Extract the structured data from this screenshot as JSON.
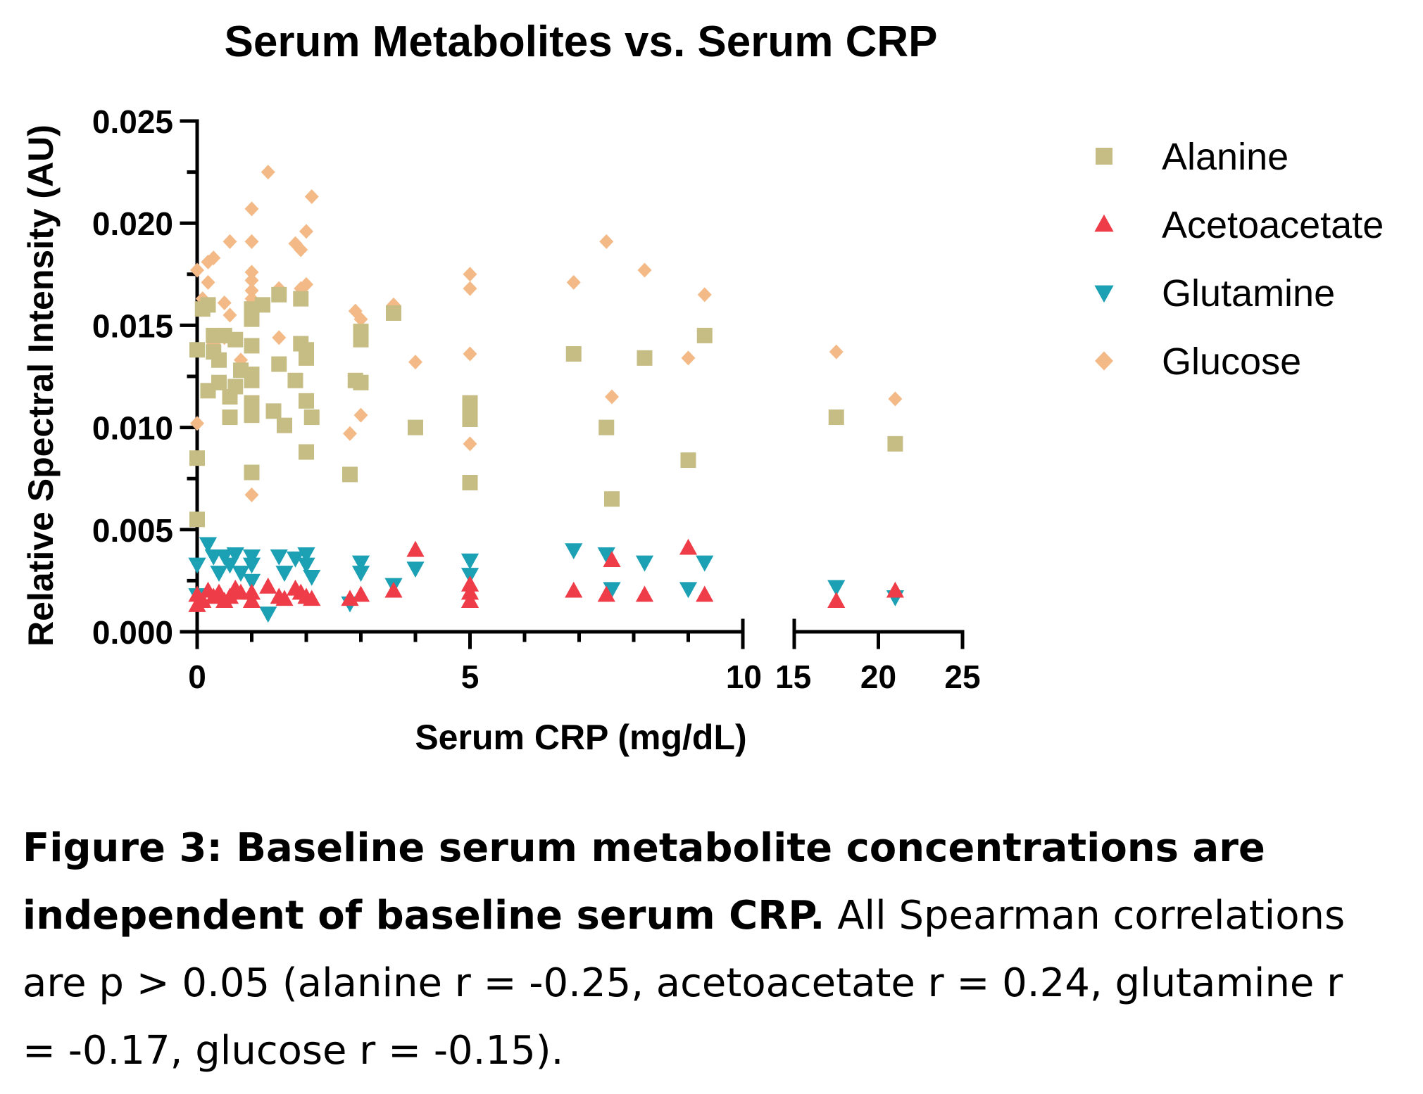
{
  "chart_data": {
    "type": "scatter",
    "title": "Serum Metabolites vs. Serum CRP",
    "xlabel": "Serum CRP (mg/dL)",
    "ylabel": "Relative Spectral Intensity (AU)",
    "xlim": [
      0,
      25
    ],
    "x_axis_break": [
      10,
      15
    ],
    "ylim": [
      0,
      0.025
    ],
    "x_ticks": [
      0,
      5,
      10,
      15,
      20,
      25
    ],
    "x_tick_labels": [
      "0",
      "5",
      "10",
      "15",
      "20",
      "25"
    ],
    "y_ticks": [
      0,
      0.005,
      0.01,
      0.015,
      0.02,
      0.025
    ],
    "y_tick_labels": [
      "0.000",
      "0.005",
      "0.010",
      "0.015",
      "0.020",
      "0.025"
    ],
    "grid": false,
    "legend_position": "right",
    "series": [
      {
        "name": "Alanine",
        "marker": "square",
        "color": "#c6bd84",
        "points": [
          [
            0,
            0.0085
          ],
          [
            0,
            0.0055
          ],
          [
            0,
            0.0138
          ],
          [
            0.1,
            0.0158
          ],
          [
            0.2,
            0.016
          ],
          [
            0.2,
            0.0118
          ],
          [
            0.3,
            0.0137
          ],
          [
            0.3,
            0.0145
          ],
          [
            0.4,
            0.0133
          ],
          [
            0.4,
            0.0122
          ],
          [
            0.5,
            0.0145
          ],
          [
            0.6,
            0.0115
          ],
          [
            0.6,
            0.0105
          ],
          [
            0.7,
            0.0143
          ],
          [
            0.7,
            0.012
          ],
          [
            0.8,
            0.0128
          ],
          [
            1,
            0.0153
          ],
          [
            1,
            0.0158
          ],
          [
            1,
            0.014
          ],
          [
            1,
            0.0126
          ],
          [
            1,
            0.0123
          ],
          [
            1,
            0.0112
          ],
          [
            1,
            0.0106
          ],
          [
            1,
            0.0078
          ],
          [
            1.2,
            0.016
          ],
          [
            1.4,
            0.0108
          ],
          [
            1.5,
            0.0165
          ],
          [
            1.5,
            0.0131
          ],
          [
            1.6,
            0.0101
          ],
          [
            1.8,
            0.0123
          ],
          [
            1.9,
            0.0163
          ],
          [
            1.9,
            0.0141
          ],
          [
            2,
            0.0138
          ],
          [
            2,
            0.0134
          ],
          [
            2,
            0.0113
          ],
          [
            2,
            0.0088
          ],
          [
            2.1,
            0.0105
          ],
          [
            2.8,
            0.0077
          ],
          [
            2.9,
            0.0123
          ],
          [
            3,
            0.0147
          ],
          [
            3,
            0.0143
          ],
          [
            3,
            0.0122
          ],
          [
            3.6,
            0.0156
          ],
          [
            4,
            0.01
          ],
          [
            5,
            0.0112
          ],
          [
            5,
            0.0108
          ],
          [
            5,
            0.0104
          ],
          [
            5,
            0.0073
          ],
          [
            6.9,
            0.0136
          ],
          [
            7.5,
            0.01
          ],
          [
            7.6,
            0.0065
          ],
          [
            8.2,
            0.0134
          ],
          [
            9,
            0.0084
          ],
          [
            9.3,
            0.0145
          ],
          [
            17.5,
            0.0105
          ],
          [
            21,
            0.0092
          ]
        ]
      },
      {
        "name": "Acetoacetate",
        "marker": "triangle-up",
        "color": "#ee3d48",
        "points": [
          [
            0,
            0.0013
          ],
          [
            0,
            0.0018
          ],
          [
            0.1,
            0.0015
          ],
          [
            0.2,
            0.002
          ],
          [
            0.3,
            0.0017
          ],
          [
            0.4,
            0.0019
          ],
          [
            0.5,
            0.0015
          ],
          [
            0.6,
            0.0017
          ],
          [
            0.7,
            0.0021
          ],
          [
            0.8,
            0.0019
          ],
          [
            1,
            0.0015
          ],
          [
            1,
            0.0019
          ],
          [
            1.3,
            0.0022
          ],
          [
            1.5,
            0.0017
          ],
          [
            1.6,
            0.0016
          ],
          [
            1.8,
            0.0021
          ],
          [
            1.9,
            0.0019
          ],
          [
            2,
            0.0017
          ],
          [
            2.1,
            0.0016
          ],
          [
            2.8,
            0.0016
          ],
          [
            3,
            0.0018
          ],
          [
            3.6,
            0.002
          ],
          [
            4,
            0.004
          ],
          [
            5,
            0.0015
          ],
          [
            5,
            0.0019
          ],
          [
            5,
            0.0023
          ],
          [
            6.9,
            0.002
          ],
          [
            7.5,
            0.0018
          ],
          [
            7.6,
            0.0035
          ],
          [
            8.2,
            0.0018
          ],
          [
            9,
            0.0041
          ],
          [
            9.3,
            0.0018
          ],
          [
            17.5,
            0.0015
          ],
          [
            21,
            0.002
          ]
        ]
      },
      {
        "name": "Glutamine",
        "marker": "triangle-down",
        "color": "#1ba0b4",
        "points": [
          [
            0,
            0.0033
          ],
          [
            0,
            0.0018
          ],
          [
            0.2,
            0.0043
          ],
          [
            0.3,
            0.0037
          ],
          [
            0.4,
            0.0029
          ],
          [
            0.5,
            0.0037
          ],
          [
            0.6,
            0.0033
          ],
          [
            0.7,
            0.0038
          ],
          [
            0.8,
            0.0029
          ],
          [
            1,
            0.0037
          ],
          [
            1,
            0.0033
          ],
          [
            1,
            0.0025
          ],
          [
            1.3,
            0.0009
          ],
          [
            1.5,
            0.0037
          ],
          [
            1.6,
            0.0029
          ],
          [
            1.8,
            0.0036
          ],
          [
            2,
            0.0038
          ],
          [
            2,
            0.0033
          ],
          [
            2.1,
            0.0027
          ],
          [
            2.8,
            0.0014
          ],
          [
            3,
            0.0034
          ],
          [
            3,
            0.0029
          ],
          [
            3.6,
            0.0023
          ],
          [
            4,
            0.0031
          ],
          [
            5,
            0.0035
          ],
          [
            5,
            0.0028
          ],
          [
            6.9,
            0.004
          ],
          [
            7.5,
            0.0038
          ],
          [
            7.6,
            0.0021
          ],
          [
            8.2,
            0.0034
          ],
          [
            9,
            0.0021
          ],
          [
            9.3,
            0.0034
          ],
          [
            17.5,
            0.0022
          ],
          [
            21,
            0.0017
          ]
        ]
      },
      {
        "name": "Glucose",
        "marker": "diamond",
        "color": "#f3ba87",
        "points": [
          [
            0,
            0.0177
          ],
          [
            0,
            0.0102
          ],
          [
            0.1,
            0.0163
          ],
          [
            0.2,
            0.0181
          ],
          [
            0.2,
            0.0171
          ],
          [
            0.3,
            0.0183
          ],
          [
            0.3,
            0.0141
          ],
          [
            0.5,
            0.0144
          ],
          [
            0.5,
            0.0161
          ],
          [
            0.6,
            0.0191
          ],
          [
            0.6,
            0.0155
          ],
          [
            0.8,
            0.0133
          ],
          [
            1,
            0.0207
          ],
          [
            1,
            0.0191
          ],
          [
            1,
            0.0176
          ],
          [
            1,
            0.0172
          ],
          [
            1,
            0.0167
          ],
          [
            1,
            0.0163
          ],
          [
            1,
            0.0067
          ],
          [
            1.3,
            0.0225
          ],
          [
            1.5,
            0.0168
          ],
          [
            1.5,
            0.0144
          ],
          [
            1.8,
            0.019
          ],
          [
            1.9,
            0.0187
          ],
          [
            1.9,
            0.0168
          ],
          [
            2,
            0.0196
          ],
          [
            2,
            0.017
          ],
          [
            2.1,
            0.0213
          ],
          [
            2.8,
            0.0097
          ],
          [
            2.9,
            0.0157
          ],
          [
            3,
            0.0153
          ],
          [
            3,
            0.0106
          ],
          [
            3.6,
            0.016
          ],
          [
            4,
            0.0132
          ],
          [
            5,
            0.0175
          ],
          [
            5,
            0.0168
          ],
          [
            5,
            0.0136
          ],
          [
            5,
            0.0092
          ],
          [
            6.9,
            0.0171
          ],
          [
            7.5,
            0.0191
          ],
          [
            7.6,
            0.0115
          ],
          [
            8.2,
            0.0177
          ],
          [
            9,
            0.0134
          ],
          [
            9.3,
            0.0165
          ],
          [
            17.5,
            0.0137
          ],
          [
            21,
            0.0114
          ]
        ]
      }
    ]
  },
  "caption": {
    "bold": "Figure 3: Baseline serum metabolite concentrations are independent of baseline serum CRP.",
    "text": " All Spearman correlations are p > 0.05 (alanine r = -0.25, acetoacetate r = 0.24, glutamine r = -0.17, glucose r = -0.15)."
  }
}
